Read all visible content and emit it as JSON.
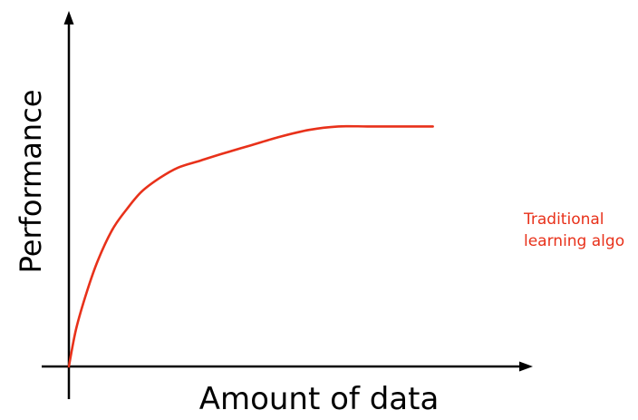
{
  "chart_data": {
    "type": "line",
    "title": "",
    "xlabel": "Amount of data",
    "ylabel": "Performance",
    "grid": false,
    "legend": "none",
    "series": [
      {
        "label_lines": [
          "Traditional",
          "learning algo"
        ],
        "color": "#e8311a",
        "x": [
          0,
          0.02,
          0.05,
          0.08,
          0.12,
          0.16,
          0.2,
          0.25,
          0.3,
          0.36,
          0.42,
          0.5,
          0.58,
          0.66,
          0.74,
          0.82,
          0.9,
          1.0
        ],
        "y": [
          0,
          0.11,
          0.22,
          0.31,
          0.4,
          0.46,
          0.51,
          0.55,
          0.58,
          0.6,
          0.62,
          0.645,
          0.67,
          0.69,
          0.7,
          0.7,
          0.7,
          0.7
        ]
      }
    ],
    "xlim": [
      0,
      1.24
    ],
    "ylim": [
      0,
      1.0
    ],
    "axes_arrows": true,
    "ticks": false
  }
}
